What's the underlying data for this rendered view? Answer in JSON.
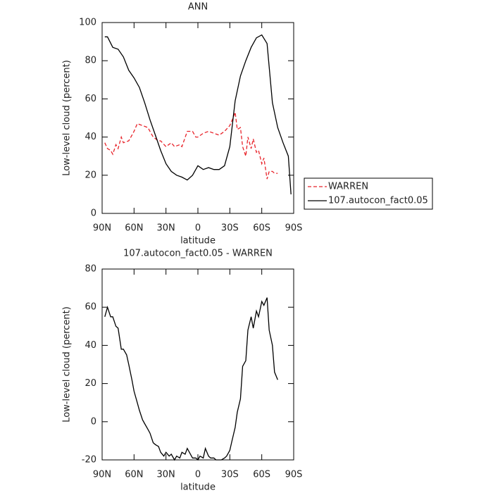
{
  "chart_data": [
    {
      "type": "line",
      "title": "ANN",
      "xlabel": "latitude",
      "ylabel": "Low-level cloud (percent)",
      "xlim": [
        90,
        -90
      ],
      "ylim": [
        0,
        100
      ],
      "xticks": [
        {
          "value": 90,
          "label": "90N"
        },
        {
          "value": 60,
          "label": "60N"
        },
        {
          "value": 30,
          "label": "30N"
        },
        0,
        {
          "value": -30,
          "label": "30S"
        },
        {
          "value": -60,
          "label": "60S"
        },
        {
          "value": -90,
          "label": "90S"
        }
      ],
      "yticks": [
        0,
        20,
        40,
        60,
        80,
        100
      ],
      "legend": "right",
      "series": [
        {
          "name": "WARREN",
          "color": "#e8232a",
          "dash": true,
          "x": [
            87.5,
            85,
            82,
            80,
            77,
            75,
            72,
            70,
            65,
            60,
            57,
            52,
            47,
            42,
            37,
            35,
            30,
            25,
            22,
            17,
            15,
            10,
            5,
            2,
            0,
            -5,
            -10,
            -15,
            -20,
            -25,
            -30,
            -33,
            -35,
            -37,
            -40,
            -42,
            -45,
            -47,
            -50,
            -52,
            -55,
            -57,
            -60,
            -62,
            -65,
            -67,
            -70,
            -72,
            -75
          ],
          "values": [
            37,
            34,
            33,
            31,
            36,
            34,
            40,
            37,
            38,
            43,
            47,
            46,
            45,
            40,
            38,
            38,
            35,
            37,
            35,
            36,
            35,
            43,
            43,
            40,
            40,
            42,
            43,
            42,
            41,
            43,
            46,
            50,
            53,
            44,
            45,
            35,
            30,
            40,
            34,
            39,
            32,
            33,
            26,
            29,
            18,
            22,
            22,
            21,
            21
          ]
        },
        {
          "name": "107.autocon_fact0.05",
          "color": "#000000",
          "dash": false,
          "x": [
            87.5,
            85,
            80,
            75,
            70,
            65,
            60,
            55,
            50,
            45,
            40,
            35,
            30,
            25,
            20,
            15,
            10,
            5,
            0,
            -5,
            -10,
            -15,
            -20,
            -25,
            -30,
            -35,
            -40,
            -45,
            -50,
            -55,
            -60,
            -65,
            -70,
            -75,
            -80,
            -85,
            -87.5
          ],
          "values": [
            92.5,
            92.5,
            87,
            86,
            82,
            75,
            71,
            66,
            58,
            49,
            41,
            33,
            26,
            22,
            20,
            19,
            17.5,
            20,
            25,
            23,
            24,
            23,
            23,
            25,
            35,
            59,
            72,
            80,
            87,
            92,
            93.5,
            89,
            58,
            45,
            37,
            30,
            10
          ]
        }
      ]
    },
    {
      "type": "line",
      "title": "107.autocon_fact0.05 - WARREN",
      "xlabel": "latitude",
      "ylabel": "Low-level cloud (percent)",
      "xlim": [
        90,
        -90
      ],
      "ylim": [
        -20,
        80
      ],
      "xticks": [
        {
          "value": 90,
          "label": "90N"
        },
        {
          "value": 60,
          "label": "60N"
        },
        {
          "value": 30,
          "label": "30N"
        },
        0,
        {
          "value": -30,
          "label": "30S"
        },
        {
          "value": -60,
          "label": "60S"
        },
        {
          "value": -90,
          "label": "90S"
        }
      ],
      "yticks": [
        -20,
        0,
        20,
        40,
        60,
        80
      ],
      "series": [
        {
          "color": "#000000",
          "dash": false,
          "x": [
            87.5,
            85,
            82,
            80,
            77,
            75,
            72,
            70,
            67,
            65,
            62,
            60,
            57,
            55,
            52,
            50,
            47,
            45,
            42,
            40,
            37,
            35,
            32,
            30,
            27,
            25,
            22,
            20,
            17,
            15,
            12,
            10,
            7,
            5,
            2,
            0,
            -2,
            -5,
            -7,
            -10,
            -12,
            -15,
            -17,
            -20,
            -22,
            -25,
            -27,
            -30,
            -32,
            -35,
            -37,
            -40,
            -42,
            -45,
            -47,
            -50,
            -52,
            -55,
            -57,
            -60,
            -62,
            -65,
            -67,
            -70,
            -72,
            -75
          ],
          "values": [
            55,
            60,
            55,
            55,
            50,
            49,
            38,
            38,
            35,
            30,
            22,
            16,
            10,
            6,
            1,
            -1,
            -4,
            -6,
            -11,
            -12,
            -13,
            -16,
            -18,
            -16,
            -18,
            -17,
            -20,
            -18,
            -19,
            -16,
            -17,
            -14,
            -17,
            -19,
            -19,
            -20,
            -18,
            -19,
            -14,
            -18,
            -19,
            -19,
            -20,
            -20,
            -20,
            -19,
            -18,
            -15,
            -10,
            -3,
            5,
            12,
            29,
            32,
            48,
            55,
            49,
            58,
            55,
            63,
            61,
            65,
            48,
            40,
            26,
            22
          ]
        }
      ]
    }
  ]
}
